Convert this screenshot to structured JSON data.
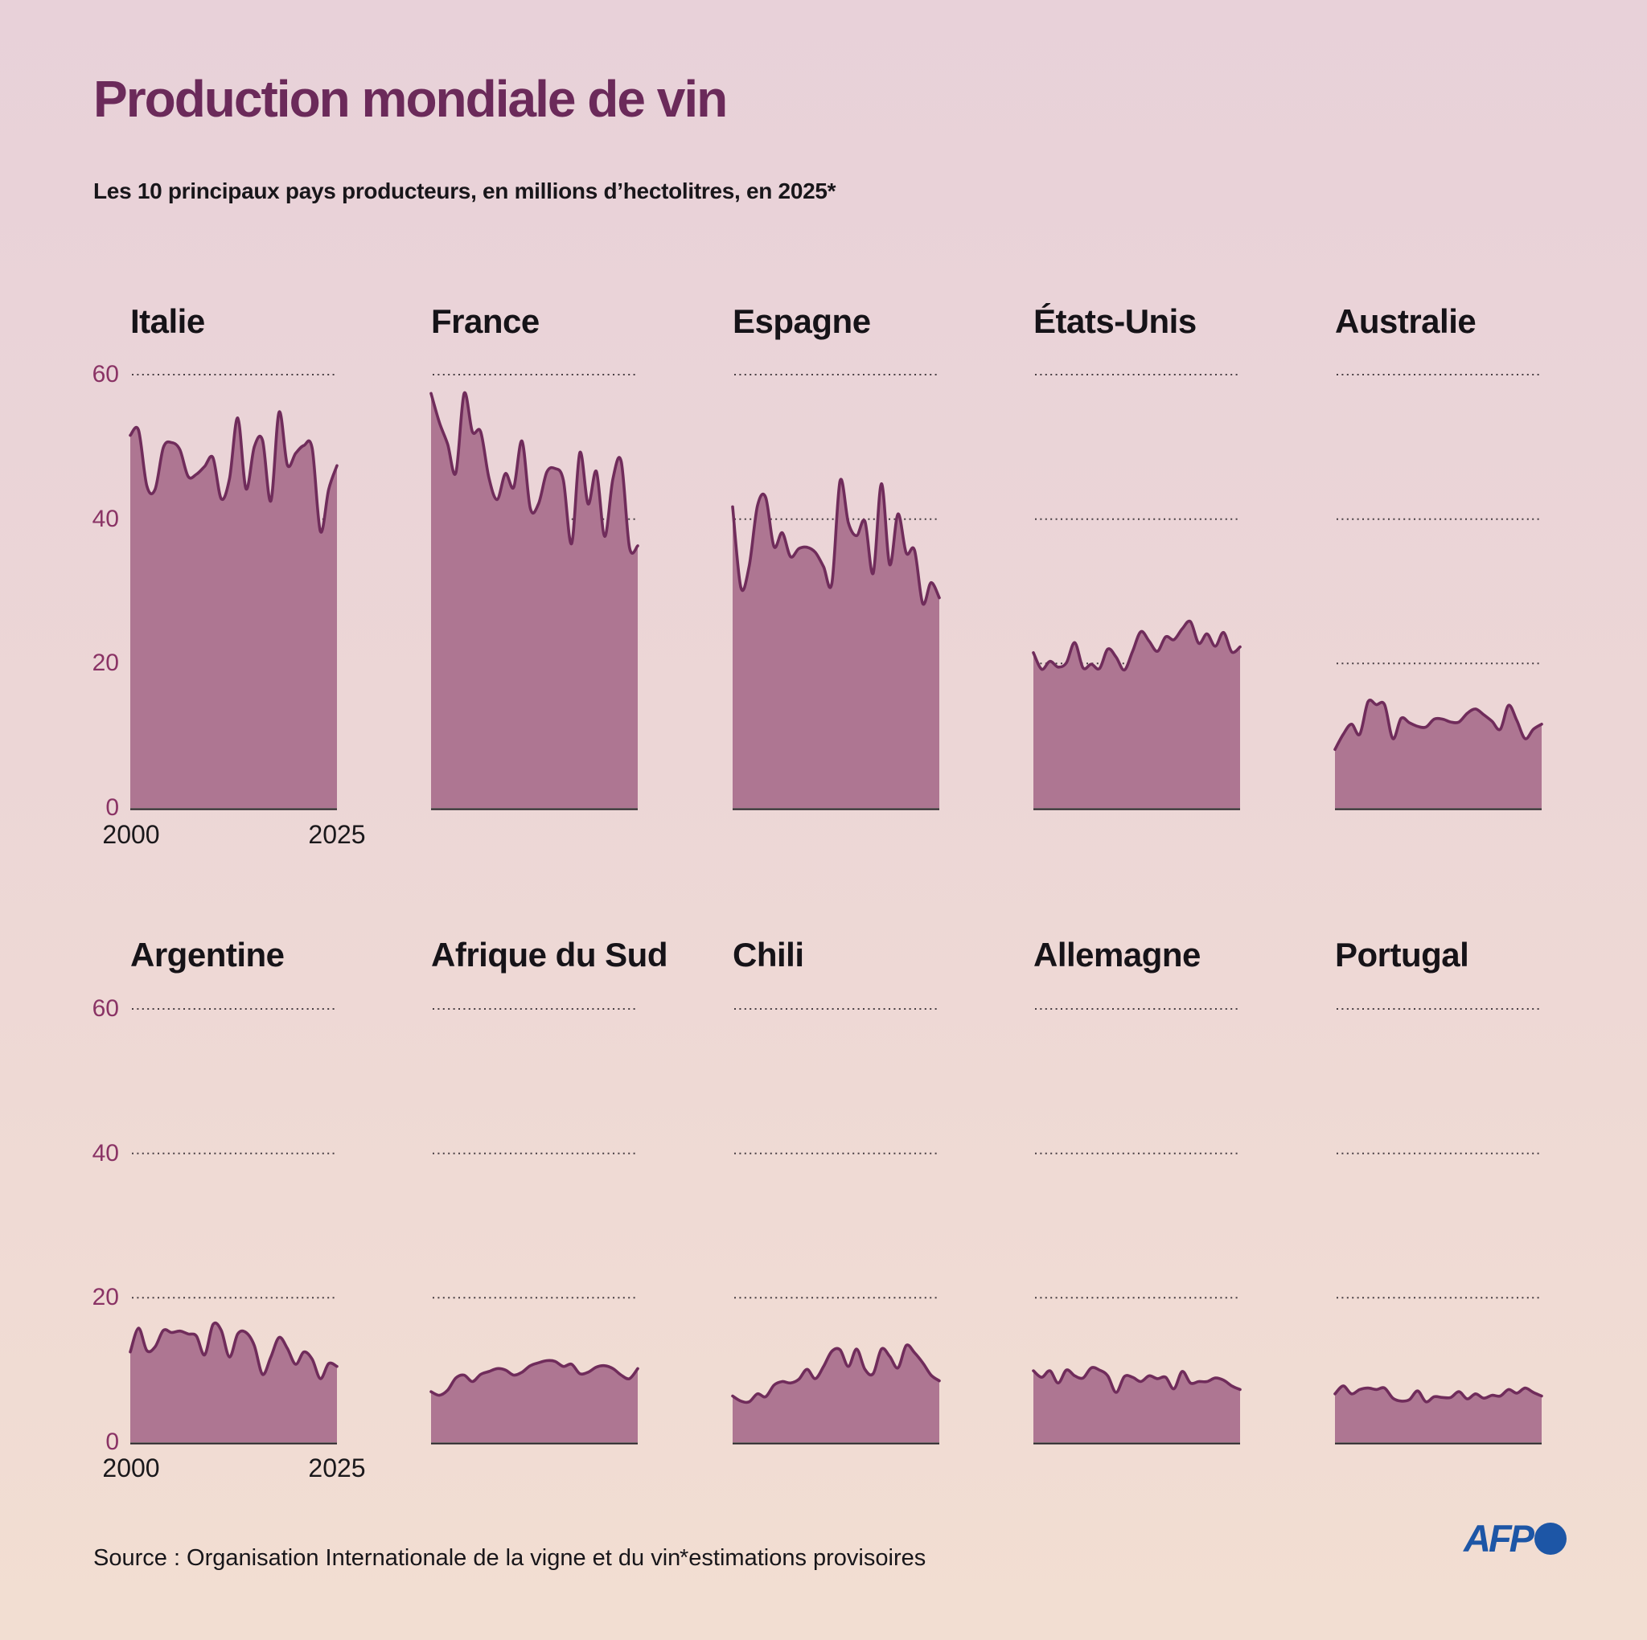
{
  "title": "Production mondiale de vin",
  "subtitle": "Les 10 principaux pays producteurs, en millions d’hectolitres, en 2025*",
  "source": "Source : Organisation Internationale de la vigne et du vin",
  "footnote": "*estimations provisoires",
  "logo_text": "AFP",
  "colors": {
    "background_top": "#e8d1d9",
    "background_bottom": "#f2ded2",
    "area_fill": "#ae7692",
    "area_line": "#702c5b",
    "baseline": "#28242a",
    "grid_dots": "#483e43",
    "tick_label": "#8a3365",
    "title": "#6b2a5a",
    "afp_blue": "#1d56a6"
  },
  "chart_data": {
    "type": "area",
    "x_start": 2000,
    "x_end": 2025,
    "x_tick_labels": [
      "2000",
      "2025"
    ],
    "ylim": [
      0,
      60
    ],
    "y_ticks": [
      "60",
      "40",
      "20",
      "0"
    ],
    "grid": "dotted horizontal at 20, 40, 60",
    "unit": "millions d'hectolitres",
    "series": [
      {
        "name": "Italie",
        "values": [
          51.6,
          52.3,
          44.6,
          44.1,
          49.9,
          50.6,
          49.6,
          45.9,
          46.2,
          47.3,
          48.5,
          42.8,
          45.6,
          54,
          44.2,
          50,
          50.9,
          42.5,
          54.8,
          47.5,
          49.1,
          50.2,
          49.8,
          38.3,
          44.1,
          47.4
        ]
      },
      {
        "name": "France",
        "values": [
          57.4,
          53.4,
          50.4,
          46.4,
          57.4,
          52.1,
          52.1,
          45.7,
          42.7,
          46.3,
          44.4,
          50.8,
          41.5,
          42.1,
          46.5,
          47,
          45.4,
          36.6,
          49.2,
          42.1,
          46.6,
          37.6,
          45.6,
          48,
          36.1,
          36.3
        ]
      },
      {
        "name": "Espagne",
        "values": [
          41.7,
          30.5,
          33.5,
          41.8,
          43,
          36.2,
          38.1,
          34.8,
          35.9,
          36.1,
          35.4,
          33.4,
          31.1,
          45.3,
          39.5,
          37.7,
          39.7,
          32.5,
          44.9,
          33.7,
          40.7,
          35.3,
          35.7,
          28.3,
          31.2,
          29.1
        ]
      },
      {
        "name": "États-Unis",
        "values": [
          21.5,
          19.2,
          20.3,
          19.5,
          20.1,
          22.9,
          19.4,
          19.9,
          19.3,
          22,
          20.9,
          19.1,
          21.7,
          24.4,
          23.1,
          21.7,
          23.7,
          23.3,
          24.8,
          25.8,
          22.8,
          24.1,
          22.4,
          24.3,
          21.6,
          22.3
        ]
      },
      {
        "name": "Australie",
        "values": [
          8.1,
          10.2,
          11.6,
          10.2,
          14.7,
          14.3,
          14.3,
          9.6,
          12.4,
          11.8,
          11.3,
          11.2,
          12.3,
          12.3,
          11.9,
          11.9,
          13.1,
          13.7,
          12.9,
          12,
          10.9,
          14.2,
          12.1,
          9.6,
          10.9,
          11.6
        ]
      },
      {
        "name": "Argentine",
        "values": [
          12.5,
          15.8,
          12.7,
          13.2,
          15.5,
          15.2,
          15.4,
          15,
          14.7,
          12.1,
          16.3,
          15.5,
          11.8,
          15,
          15.2,
          13.4,
          9.4,
          11.8,
          14.5,
          13,
          10.8,
          12.5,
          11.5,
          8.8,
          10.9,
          10.5
        ]
      },
      {
        "name": "Afrique du Sud",
        "values": [
          7,
          6.5,
          7.2,
          8.9,
          9.3,
          8.4,
          9.4,
          9.8,
          10.2,
          10,
          9.3,
          9.7,
          10.6,
          11,
          11.3,
          11.2,
          10.5,
          10.8,
          9.5,
          9.7,
          10.4,
          10.6,
          10.2,
          9.3,
          8.8,
          10.2
        ]
      },
      {
        "name": "Chili",
        "values": [
          6.4,
          5.7,
          5.6,
          6.7,
          6.3,
          7.9,
          8.4,
          8.2,
          8.7,
          10.1,
          8.8,
          10.5,
          12.6,
          12.8,
          10.5,
          12.9,
          10.1,
          9.5,
          12.9,
          11.9,
          10.3,
          13.4,
          12.4,
          11,
          9.3,
          8.5
        ]
      },
      {
        "name": "Allemagne",
        "values": [
          9.9,
          9,
          9.9,
          8.2,
          10,
          9.2,
          8.9,
          10.3,
          10,
          9.2,
          6.9,
          9.1,
          9,
          8.4,
          9.2,
          8.8,
          9,
          7.4,
          9.8,
          8.2,
          8.4,
          8.4,
          8.9,
          8.6,
          7.8,
          7.3
        ]
      },
      {
        "name": "Portugal",
        "values": [
          6.7,
          7.8,
          6.7,
          7.3,
          7.5,
          7.3,
          7.5,
          6.1,
          5.7,
          5.9,
          7.1,
          5.6,
          6.3,
          6.2,
          6.2,
          7,
          6,
          6.7,
          6.1,
          6.5,
          6.4,
          7.3,
          6.8,
          7.5,
          6.9,
          6.4
        ]
      }
    ]
  }
}
